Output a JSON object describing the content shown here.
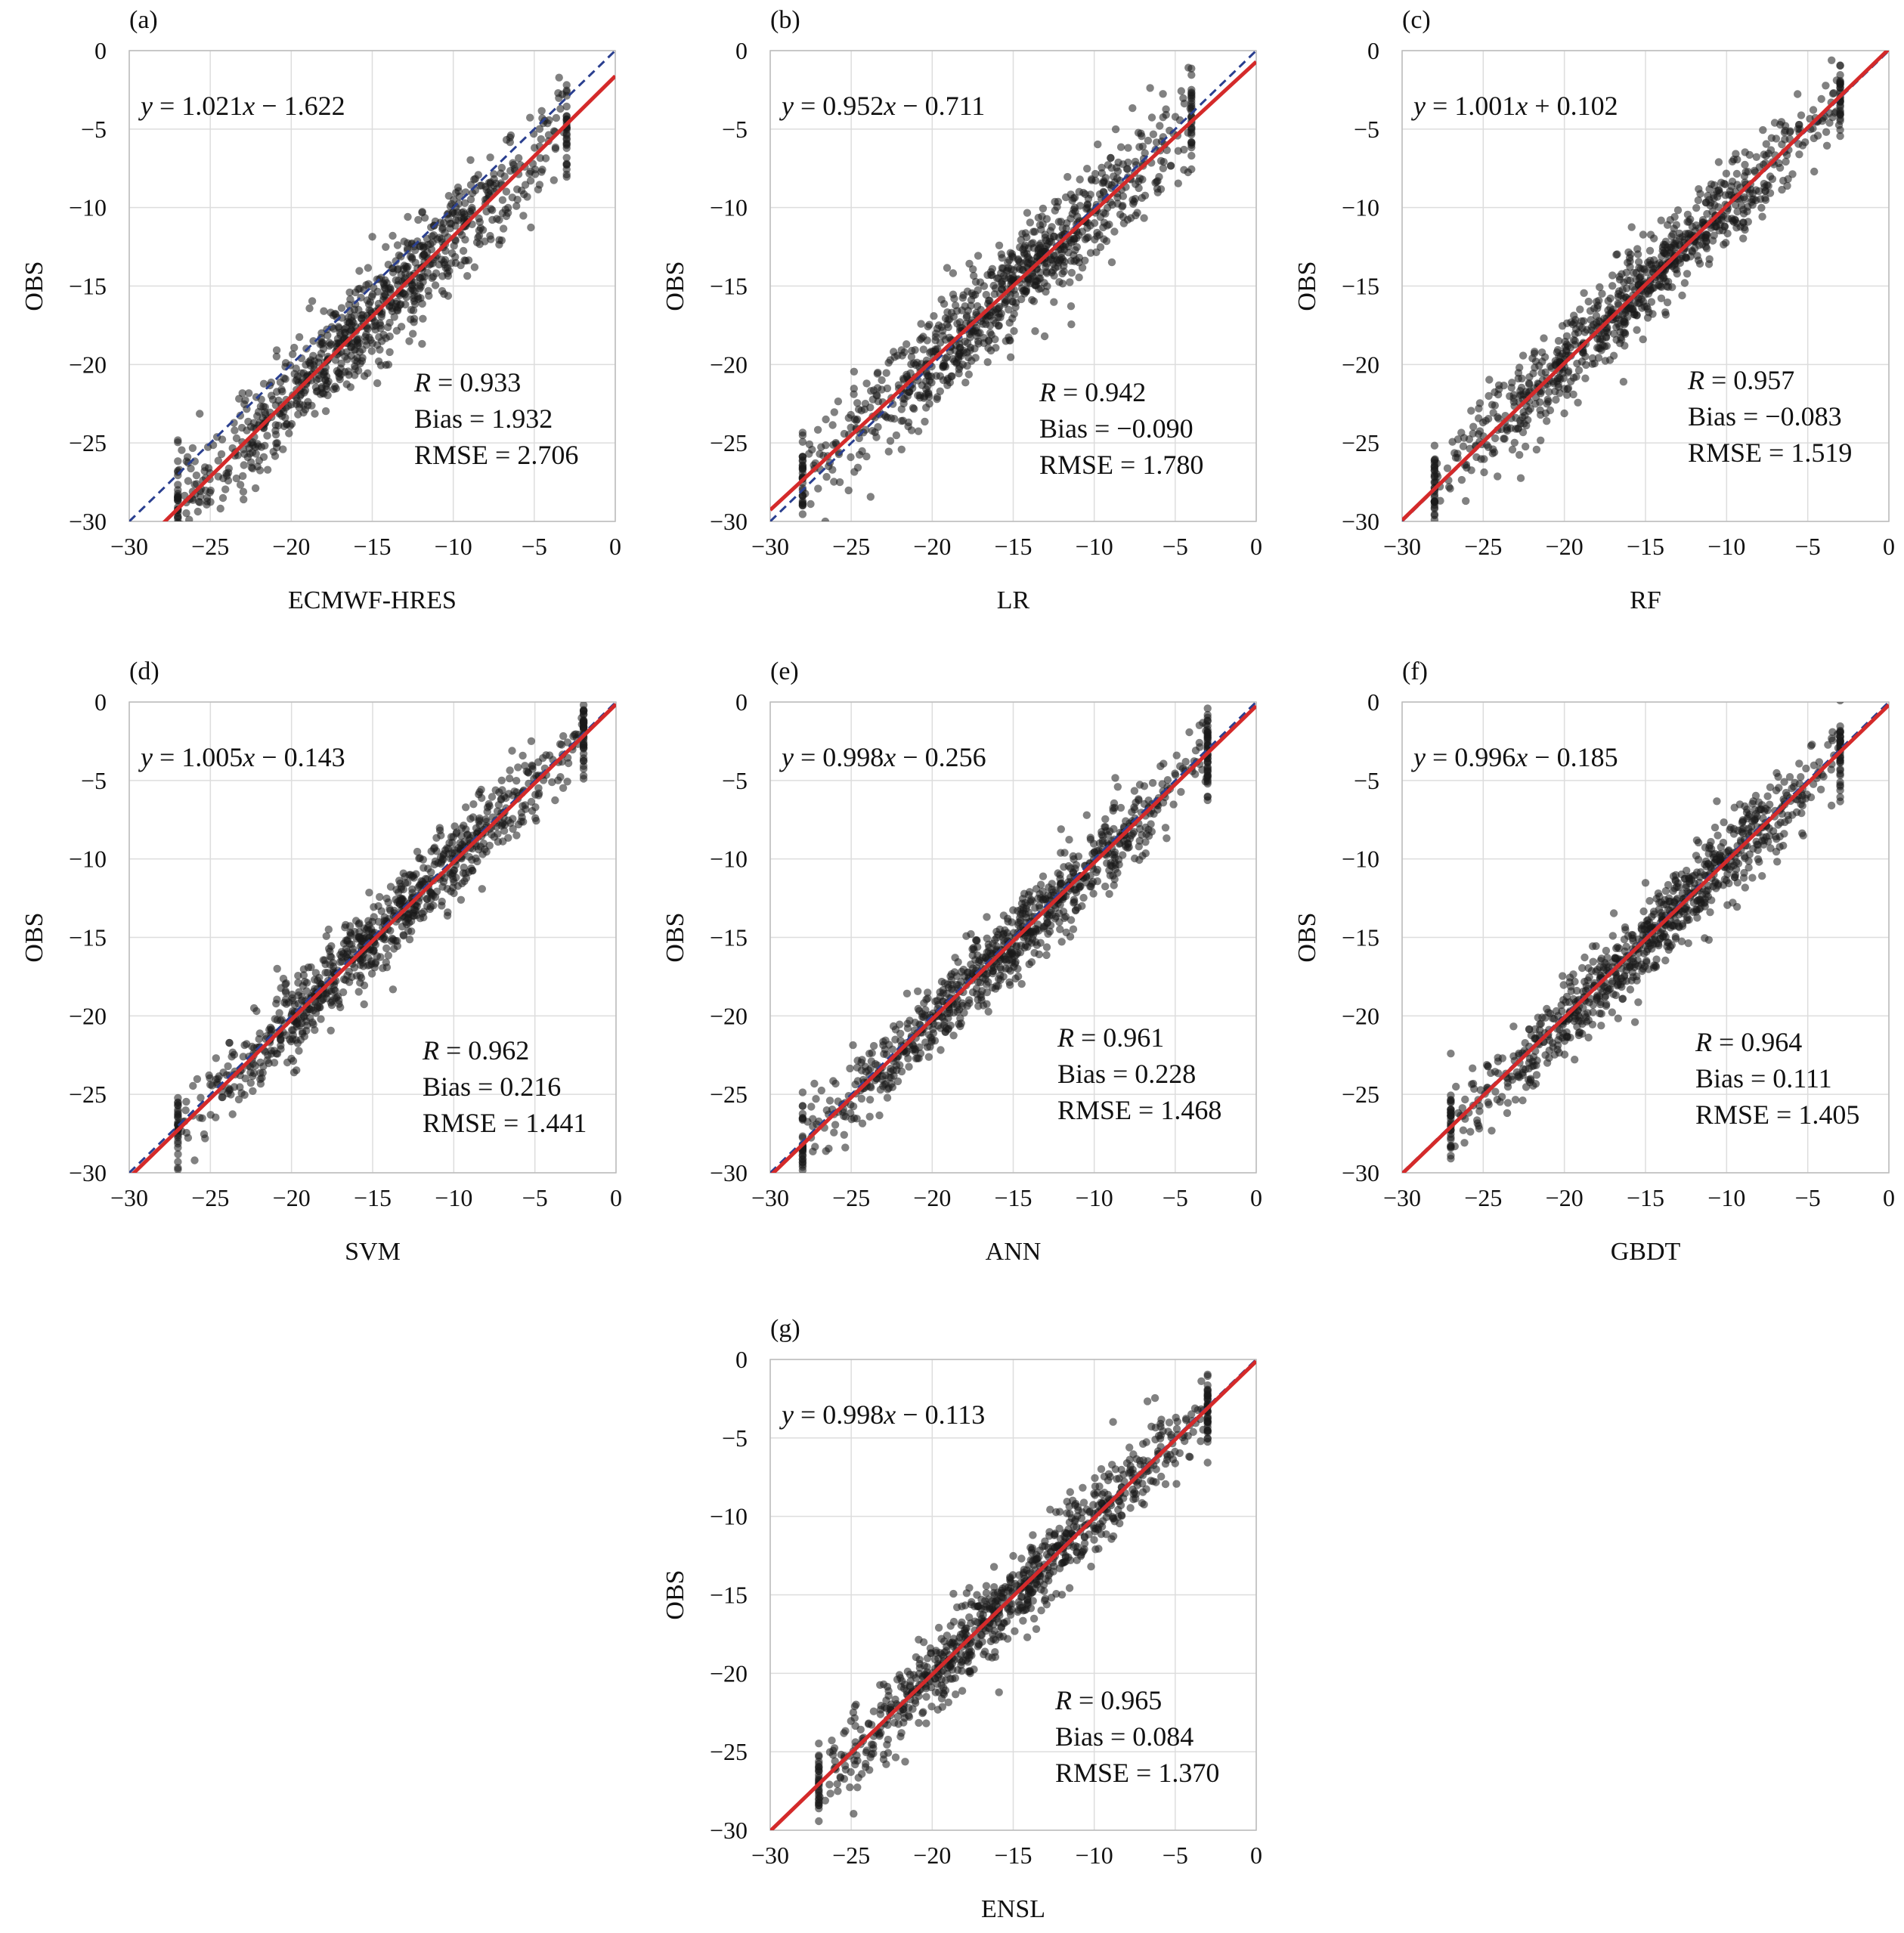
{
  "figure": {
    "colors": {
      "points": "#1a1a1a",
      "fit_line": "#d42a2a",
      "reference_line": "#2a3f8f",
      "grid": "#dddddd",
      "frame": "#bbbbbb"
    }
  },
  "chart_data": [
    {
      "type": "scatter",
      "panel_label": "(a)",
      "xlabel": "ECMWF-HRES",
      "ylabel": "OBS",
      "xlim": [
        -30,
        0
      ],
      "ylim": [
        -30,
        0
      ],
      "xticks": [
        "−30",
        "−25",
        "−20",
        "−15",
        "−10",
        "−5",
        "0"
      ],
      "yticks": [
        "−30",
        "−25",
        "−20",
        "−15",
        "−10",
        "−5",
        "0"
      ],
      "grid": true,
      "fit": {
        "slope": 1.021,
        "intercept": -1.622,
        "equation_text": "= 1.021x − 1.622"
      },
      "reference_line": "1:1 dashed",
      "stats": {
        "R": "= 0.933",
        "Bias": "Bias = 1.932",
        "RMSE": "RMSE = 2.706"
      },
      "point_cloud": {
        "x_range": [
          -27,
          -3
        ],
        "spread": 1.6,
        "offset": -1.9,
        "n": 900
      }
    },
    {
      "type": "scatter",
      "panel_label": "(b)",
      "xlabel": "LR",
      "ylabel": "OBS",
      "xlim": [
        -30,
        0
      ],
      "ylim": [
        -30,
        0
      ],
      "xticks": [
        "−30",
        "−25",
        "−20",
        "−15",
        "−10",
        "−5",
        "0"
      ],
      "yticks": [
        "−30",
        "−25",
        "−20",
        "−15",
        "−10",
        "−5",
        "0"
      ],
      "grid": true,
      "fit": {
        "slope": 0.952,
        "intercept": -0.711,
        "equation_text": "= 0.952x − 0.711"
      },
      "reference_line": "1:1 dashed",
      "stats": {
        "R": "= 0.942",
        "Bias": "Bias = −0.090",
        "RMSE": "RMSE = 1.780"
      },
      "point_cloud": {
        "x_range": [
          -28,
          -4
        ],
        "spread": 1.6,
        "offset": 0,
        "n": 900
      }
    },
    {
      "type": "scatter",
      "panel_label": "(c)",
      "xlabel": "RF",
      "ylabel": "OBS",
      "xlim": [
        -30,
        0
      ],
      "ylim": [
        -30,
        0
      ],
      "xticks": [
        "−30",
        "−25",
        "−20",
        "−15",
        "−10",
        "−5",
        "0"
      ],
      "yticks": [
        "−30",
        "−25",
        "−20",
        "−15",
        "−10",
        "−5",
        "0"
      ],
      "grid": true,
      "fit": {
        "slope": 1.001,
        "intercept": 0.102,
        "equation_text": "= 1.001x + 0.102"
      },
      "reference_line": "1:1 dashed",
      "stats": {
        "R": "= 0.957",
        "Bias": "Bias = −0.083",
        "RMSE": "RMSE = 1.519"
      },
      "point_cloud": {
        "x_range": [
          -28,
          -3
        ],
        "spread": 1.4,
        "offset": 0,
        "n": 900
      }
    },
    {
      "type": "scatter",
      "panel_label": "(d)",
      "xlabel": "SVM",
      "ylabel": "OBS",
      "xlim": [
        -30,
        0
      ],
      "ylim": [
        -30,
        0
      ],
      "xticks": [
        "−30",
        "−25",
        "−20",
        "−15",
        "−10",
        "−5",
        "0"
      ],
      "yticks": [
        "−30",
        "−25",
        "−20",
        "−15",
        "−10",
        "−5",
        "0"
      ],
      "grid": true,
      "fit": {
        "slope": 1.005,
        "intercept": -0.143,
        "equation_text": "= 1.005x − 0.143"
      },
      "reference_line": "1:1 dashed",
      "stats": {
        "R": "= 0.962",
        "Bias": "Bias = 0.216",
        "RMSE": "RMSE = 1.441"
      },
      "point_cloud": {
        "x_range": [
          -27,
          -2
        ],
        "spread": 1.3,
        "offset": 0,
        "n": 900
      }
    },
    {
      "type": "scatter",
      "panel_label": "(e)",
      "xlabel": "ANN",
      "ylabel": "OBS",
      "xlim": [
        -30,
        0
      ],
      "ylim": [
        -30,
        0
      ],
      "xticks": [
        "−30",
        "−25",
        "−20",
        "−15",
        "−10",
        "−5",
        "0"
      ],
      "yticks": [
        "−30",
        "−25",
        "−20",
        "−15",
        "−10",
        "−5",
        "0"
      ],
      "grid": true,
      "fit": {
        "slope": 0.998,
        "intercept": -0.256,
        "equation_text": "= 0.998x − 0.256"
      },
      "reference_line": "1:1 dashed",
      "stats": {
        "R": "= 0.961",
        "Bias": "Bias = 0.228",
        "RMSE": "RMSE = 1.468"
      },
      "point_cloud": {
        "x_range": [
          -28,
          -3
        ],
        "spread": 1.3,
        "offset": 0,
        "n": 900
      }
    },
    {
      "type": "scatter",
      "panel_label": "(f)",
      "xlabel": "GBDT",
      "ylabel": "OBS",
      "xlim": [
        -30,
        0
      ],
      "ylim": [
        -30,
        0
      ],
      "xticks": [
        "−30",
        "−25",
        "−20",
        "−15",
        "−10",
        "−5",
        "0"
      ],
      "yticks": [
        "−30",
        "−25",
        "−20",
        "−15",
        "−10",
        "−5",
        "0"
      ],
      "grid": true,
      "fit": {
        "slope": 0.996,
        "intercept": -0.185,
        "equation_text": "= 0.996x − 0.185"
      },
      "reference_line": "1:1 dashed",
      "stats": {
        "R": "= 0.964",
        "Bias": "Bias = 0.111",
        "RMSE": "RMSE = 1.405"
      },
      "point_cloud": {
        "x_range": [
          -27,
          -3
        ],
        "spread": 1.3,
        "offset": 0,
        "n": 900
      }
    },
    {
      "type": "scatter",
      "panel_label": "(g)",
      "xlabel": "ENSL",
      "ylabel": "OBS",
      "xlim": [
        -30,
        0
      ],
      "ylim": [
        -30,
        0
      ],
      "xticks": [
        "−30",
        "−25",
        "−20",
        "−15",
        "−10",
        "−5",
        "0"
      ],
      "yticks": [
        "−30",
        "−25",
        "−20",
        "−15",
        "−10",
        "−5",
        "0"
      ],
      "grid": true,
      "fit": {
        "slope": 0.998,
        "intercept": -0.113,
        "equation_text": "= 0.998x − 0.113"
      },
      "reference_line": "1:1 dashed",
      "stats": {
        "R": "= 0.965",
        "Bias": "Bias = 0.084",
        "RMSE": "RMSE = 1.370"
      },
      "point_cloud": {
        "x_range": [
          -27,
          -3
        ],
        "spread": 1.25,
        "offset": 0,
        "n": 900
      }
    }
  ]
}
